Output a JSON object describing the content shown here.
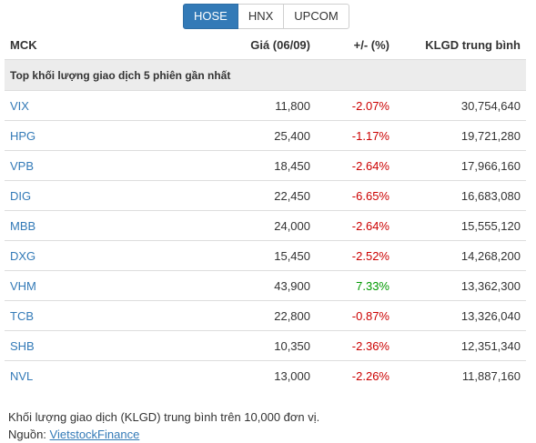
{
  "tabs": [
    {
      "label": "HOSE",
      "active": true
    },
    {
      "label": "HNX",
      "active": false
    },
    {
      "label": "UPCOM",
      "active": false
    }
  ],
  "columns": {
    "mck": "MCK",
    "price": "Giá (06/09)",
    "change": "+/- (%)",
    "volume": "KLGD trung bình"
  },
  "section_title": "Top khối lượng giao dịch 5 phiên gần nhất",
  "rows": [
    {
      "mck": "VIX",
      "price": "11,800",
      "change": "-2.07%",
      "volume": "30,754,640",
      "direction": "down"
    },
    {
      "mck": "HPG",
      "price": "25,400",
      "change": "-1.17%",
      "volume": "19,721,280",
      "direction": "down"
    },
    {
      "mck": "VPB",
      "price": "18,450",
      "change": "-2.64%",
      "volume": "17,966,160",
      "direction": "down"
    },
    {
      "mck": "DIG",
      "price": "22,450",
      "change": "-6.65%",
      "volume": "16,683,080",
      "direction": "down"
    },
    {
      "mck": "MBB",
      "price": "24,000",
      "change": "-2.64%",
      "volume": "15,555,120",
      "direction": "down"
    },
    {
      "mck": "DXG",
      "price": "15,450",
      "change": "-2.52%",
      "volume": "14,268,200",
      "direction": "down"
    },
    {
      "mck": "VHM",
      "price": "43,900",
      "change": "7.33%",
      "volume": "13,362,300",
      "direction": "up"
    },
    {
      "mck": "TCB",
      "price": "22,800",
      "change": "-0.87%",
      "volume": "13,326,040",
      "direction": "down"
    },
    {
      "mck": "SHB",
      "price": "10,350",
      "change": "-2.36%",
      "volume": "12,351,340",
      "direction": "down"
    },
    {
      "mck": "NVL",
      "price": "13,000",
      "change": "-2.26%",
      "volume": "11,887,160",
      "direction": "down"
    }
  ],
  "footer": {
    "note": "Khối lượng giao dịch (KLGD) trung bình trên 10,000 đơn vị.",
    "source_label": "Nguồn: ",
    "source_link": "VietstockFinance"
  },
  "colors": {
    "accent": "#337ab7",
    "negative": "#cc0000",
    "positive": "#009900",
    "section_bg": "#ececec"
  }
}
